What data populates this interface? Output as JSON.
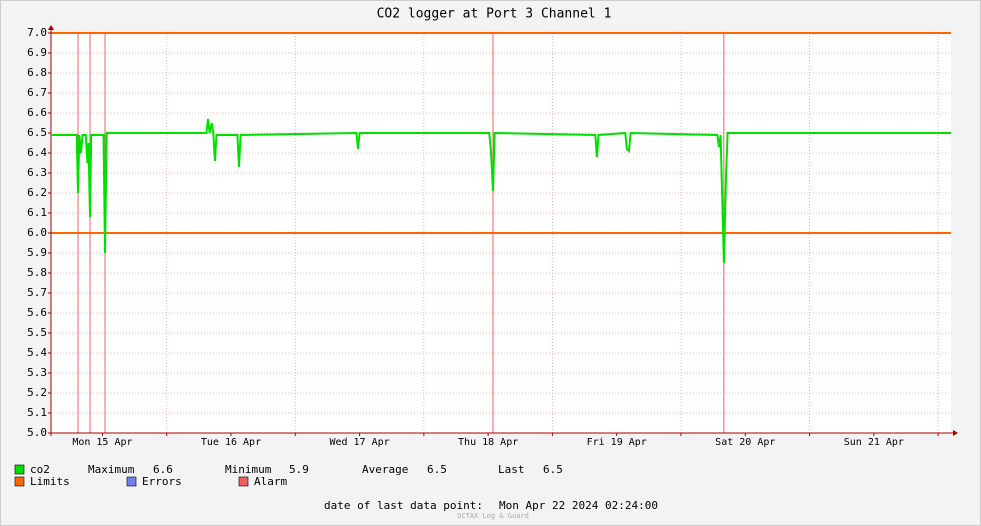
{
  "chart_data": {
    "type": "line",
    "title": "CO2 logger at Port 3 Channel 1",
    "xlim": [
      0,
      168
    ],
    "xticks": [
      {
        "value": 9.6,
        "label": "Mon 15 Apr"
      },
      {
        "value": 33.6,
        "label": "Tue 16 Apr"
      },
      {
        "value": 57.6,
        "label": "Wed 17 Apr"
      },
      {
        "value": 81.6,
        "label": "Thu 18 Apr"
      },
      {
        "value": 105.6,
        "label": "Fri 19 Apr"
      },
      {
        "value": 129.6,
        "label": "Sat 20 Apr"
      },
      {
        "value": 153.6,
        "label": "Sun 21 Apr"
      }
    ],
    "xgrid": [
      21.6,
      45.6,
      69.6,
      93.6,
      117.6,
      141.6,
      165.6
    ],
    "ylim": [
      5.0,
      7.0
    ],
    "yticks": [
      {
        "value": 5.0,
        "label": "5.0"
      },
      5.1,
      5.2,
      5.3,
      5.4,
      5.5,
      5.6,
      5.7,
      5.8,
      5.9,
      {
        "value": 6.0,
        "label": "6.0"
      },
      6.1,
      6.2,
      6.3,
      6.4,
      6.5,
      6.6,
      6.7,
      6.8,
      6.9,
      {
        "value": 7.0,
        "label": "7.0"
      }
    ],
    "grid": true,
    "x": [
      0,
      4.8,
      5.04,
      5.3,
      5.6,
      5.9,
      6.5,
      6.8,
      7.0,
      7.28,
      7.5,
      9.8,
      10.08,
      10.4,
      29.0,
      29.3,
      29.6,
      30.0,
      30.3,
      30.6,
      30.9,
      34.8,
      35.1,
      35.4,
      57.0,
      57.3,
      57.6,
      81.8,
      82.1,
      82.5,
      82.8,
      101.6,
      101.9,
      102.2,
      107.2,
      107.5,
      107.9,
      108.2,
      124.4,
      124.7,
      125.0,
      125.6,
      126.0,
      126.3,
      168
    ],
    "series": [
      {
        "name": "co2",
        "color": "#00e000",
        "values": [
          6.49,
          6.49,
          6.2,
          6.49,
          6.4,
          6.49,
          6.49,
          6.35,
          6.45,
          6.08,
          6.49,
          6.49,
          5.9,
          6.5,
          6.5,
          6.57,
          6.5,
          6.55,
          6.5,
          6.36,
          6.49,
          6.49,
          6.33,
          6.49,
          6.5,
          6.42,
          6.5,
          6.5,
          6.42,
          6.21,
          6.5,
          6.49,
          6.38,
          6.49,
          6.5,
          6.42,
          6.41,
          6.5,
          6.49,
          6.43,
          6.49,
          5.85,
          6.28,
          6.5,
          6.5
        ]
      }
    ],
    "limits": {
      "name": "Limits",
      "color": "#ff6600",
      "values": [
        7.0,
        6.0
      ]
    },
    "alarms": {
      "name": "Alarm",
      "color": "#f06060",
      "x": [
        5.04,
        7.28,
        10.08,
        82.5,
        125.6
      ]
    },
    "errors": {
      "name": "Errors",
      "color": "#7080f0"
    },
    "stats": [
      {
        "label": "Maximum",
        "value": 6.6
      },
      {
        "label": "Minimum",
        "value": 5.9
      },
      {
        "label": "Average",
        "value": 6.5
      },
      {
        "label": "Last",
        "value": 6.5
      }
    ],
    "footer": {
      "label": "date of last data point:",
      "date": "Mon Apr 22 2024 02:24:00"
    },
    "watermark": "OCTAX Log & Guard"
  }
}
